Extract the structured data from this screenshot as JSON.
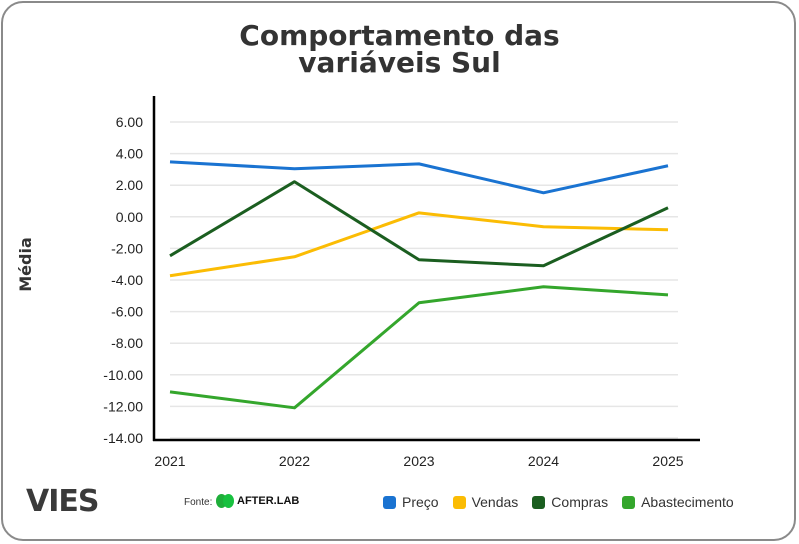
{
  "chart_data": {
    "type": "line",
    "title_line1": "Comportamento das",
    "title_line2": "variáveis Sul",
    "xlabel": "",
    "ylabel": "Média",
    "categories": [
      "2021",
      "2022",
      "2023",
      "2024",
      "2025"
    ],
    "ylim": [
      -14,
      6
    ],
    "yticks": [
      "6.00",
      "4.00",
      "2.00",
      "0.00",
      "-2.00",
      "-4.00",
      "-6.00",
      "-8.00",
      "-10.00",
      "-12.00",
      "-14.00"
    ],
    "ytick_values": [
      6,
      4,
      2,
      0,
      -2,
      -4,
      -6,
      -8,
      -10,
      -12,
      -14
    ],
    "grid": true,
    "legend_position": "bottom-right",
    "series": [
      {
        "name": "Preço",
        "color": "#1a73d1",
        "values": [
          3.48,
          3.04,
          3.35,
          1.52,
          3.23
        ]
      },
      {
        "name": "Vendas",
        "color": "#fbbc04",
        "values": [
          -3.73,
          -2.53,
          0.25,
          -0.63,
          -0.82
        ]
      },
      {
        "name": "Compras",
        "color": "#1b5e20",
        "values": [
          -2.47,
          2.22,
          -2.72,
          -3.1,
          0.57
        ]
      },
      {
        "name": "Abastecimento",
        "color": "#34a62c",
        "values": [
          -11.08,
          -12.09,
          -5.44,
          -4.43,
          -4.94
        ]
      }
    ]
  },
  "footer": {
    "brand": "VIES",
    "source_label": "Fonte:",
    "source_name": "AFTER.LAB"
  }
}
